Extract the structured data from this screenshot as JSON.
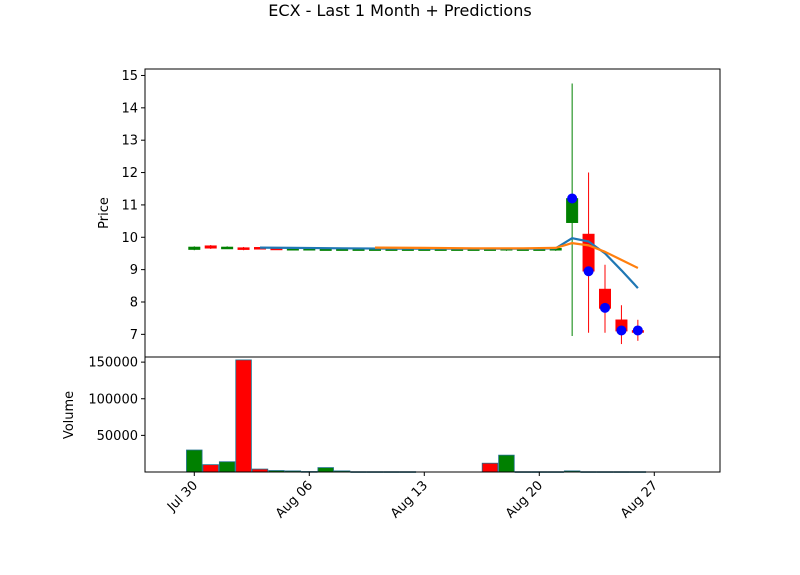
{
  "chart_data": {
    "type": "candlestick",
    "title": "ECX - Last 1 Month + Predictions",
    "price_panel": {
      "ylabel": "Price",
      "ylim": [
        6.3,
        15.2
      ],
      "yticks": [
        7,
        8,
        9,
        10,
        11,
        12,
        13,
        14,
        15
      ],
      "grid": false
    },
    "volume_panel": {
      "ylabel": "Volume",
      "ylim": [
        0,
        157000
      ],
      "yticks": [
        50000,
        100000,
        150000
      ],
      "yticklabels": [
        "50000",
        "100000",
        "150000"
      ],
      "grid": false
    },
    "x_axis": {
      "xlim": [
        "2025-07-27",
        "2025-08-31"
      ],
      "ticks": [
        "2025-07-30",
        "2025-08-06",
        "2025-08-13",
        "2025-08-20",
        "2025-08-27"
      ],
      "ticklabels": [
        "Jul 30",
        "Aug 06",
        "Aug 13",
        "Aug 20",
        "Aug 27"
      ]
    },
    "colors": {
      "up": "#008000",
      "down": "#ff0000",
      "ma_short": "#1f77b4",
      "ma_long": "#ff7f0e",
      "prediction": "#0000ff"
    },
    "candles": [
      {
        "date": "2025-07-30",
        "open": 9.62,
        "high": 9.72,
        "low": 9.6,
        "close": 9.7
      },
      {
        "date": "2025-07-31",
        "open": 9.74,
        "high": 9.76,
        "low": 9.64,
        "close": 9.66
      },
      {
        "date": "2025-08-01",
        "open": 9.68,
        "high": 9.72,
        "low": 9.66,
        "close": 9.7
      },
      {
        "date": "2025-08-02",
        "open": 9.68,
        "high": 9.7,
        "low": 9.6,
        "close": 9.66
      },
      {
        "date": "2025-08-03",
        "open": 9.69,
        "high": 9.7,
        "low": 9.64,
        "close": 9.65
      },
      {
        "date": "2025-08-04",
        "open": 9.67,
        "high": 9.7,
        "low": 9.63,
        "close": 9.65
      },
      {
        "date": "2025-08-05",
        "open": 9.64,
        "high": 9.68,
        "low": 9.6,
        "close": 9.66
      },
      {
        "date": "2025-08-06",
        "open": 9.64,
        "high": 9.68,
        "low": 9.6,
        "close": 9.66
      },
      {
        "date": "2025-08-07",
        "open": 9.64,
        "high": 9.68,
        "low": 9.6,
        "close": 9.65
      },
      {
        "date": "2025-08-08",
        "open": 9.64,
        "high": 9.67,
        "low": 9.6,
        "close": 9.65
      },
      {
        "date": "2025-08-09",
        "open": 9.64,
        "high": 9.67,
        "low": 9.6,
        "close": 9.65
      },
      {
        "date": "2025-08-10",
        "open": 9.64,
        "high": 9.67,
        "low": 9.6,
        "close": 9.65
      },
      {
        "date": "2025-08-11",
        "open": 9.64,
        "high": 9.67,
        "low": 9.6,
        "close": 9.65
      },
      {
        "date": "2025-08-12",
        "open": 9.64,
        "high": 9.67,
        "low": 9.6,
        "close": 9.65
      },
      {
        "date": "2025-08-13",
        "open": 9.64,
        "high": 9.67,
        "low": 9.6,
        "close": 9.65
      },
      {
        "date": "2025-08-14",
        "open": 9.64,
        "high": 9.67,
        "low": 9.6,
        "close": 9.65
      },
      {
        "date": "2025-08-15",
        "open": 9.64,
        "high": 9.67,
        "low": 9.6,
        "close": 9.65
      },
      {
        "date": "2025-08-16",
        "open": 9.64,
        "high": 9.67,
        "low": 9.6,
        "close": 9.65
      },
      {
        "date": "2025-08-17",
        "open": 9.64,
        "high": 9.67,
        "low": 9.6,
        "close": 9.65
      },
      {
        "date": "2025-08-18",
        "open": 9.62,
        "high": 9.67,
        "low": 9.58,
        "close": 9.66
      },
      {
        "date": "2025-08-19",
        "open": 9.64,
        "high": 9.67,
        "low": 9.6,
        "close": 9.65
      },
      {
        "date": "2025-08-20",
        "open": 9.64,
        "high": 9.67,
        "low": 9.6,
        "close": 9.65
      },
      {
        "date": "2025-08-21",
        "open": 9.6,
        "high": 9.68,
        "low": 9.58,
        "close": 9.66
      },
      {
        "date": "2025-08-22",
        "open": 10.45,
        "high": 14.75,
        "low": 6.95,
        "close": 11.2
      },
      {
        "date": "2025-08-23",
        "open": 10.1,
        "high": 12.0,
        "low": 7.05,
        "close": 8.95
      },
      {
        "date": "2025-08-24",
        "open": 8.4,
        "high": 9.15,
        "low": 7.05,
        "close": 7.8
      },
      {
        "date": "2025-08-25",
        "open": 7.45,
        "high": 7.9,
        "low": 6.7,
        "close": 7.1
      },
      {
        "date": "2025-08-26",
        "open": 7.12,
        "high": 7.45,
        "low": 6.8,
        "close": 7.1
      }
    ],
    "volume": [
      {
        "date": "2025-07-30",
        "value": 30000,
        "direction": "up"
      },
      {
        "date": "2025-07-31",
        "value": 10000,
        "direction": "down"
      },
      {
        "date": "2025-08-01",
        "value": 14000,
        "direction": "up"
      },
      {
        "date": "2025-08-02",
        "value": 153000,
        "direction": "down"
      },
      {
        "date": "2025-08-03",
        "value": 4000,
        "direction": "down"
      },
      {
        "date": "2025-08-04",
        "value": 2000,
        "direction": "up"
      },
      {
        "date": "2025-08-05",
        "value": 1500,
        "direction": "up"
      },
      {
        "date": "2025-08-06",
        "value": 700,
        "direction": "up"
      },
      {
        "date": "2025-08-07",
        "value": 6000,
        "direction": "up"
      },
      {
        "date": "2025-08-08",
        "value": 1500,
        "direction": "up"
      },
      {
        "date": "2025-08-09",
        "value": 500,
        "direction": "up"
      },
      {
        "date": "2025-08-10",
        "value": 500,
        "direction": "up"
      },
      {
        "date": "2025-08-11",
        "value": 500,
        "direction": "up"
      },
      {
        "date": "2025-08-12",
        "value": 500,
        "direction": "up"
      },
      {
        "date": "2025-08-17",
        "value": 12000,
        "direction": "down"
      },
      {
        "date": "2025-08-18",
        "value": 23000,
        "direction": "up"
      },
      {
        "date": "2025-08-19",
        "value": 500,
        "direction": "up"
      },
      {
        "date": "2025-08-20",
        "value": 500,
        "direction": "up"
      },
      {
        "date": "2025-08-21",
        "value": 500,
        "direction": "up"
      },
      {
        "date": "2025-08-22",
        "value": 1500,
        "direction": "up"
      },
      {
        "date": "2025-08-23",
        "value": 500,
        "direction": "down"
      },
      {
        "date": "2025-08-24",
        "value": 500,
        "direction": "down"
      },
      {
        "date": "2025-08-25",
        "value": 500,
        "direction": "down"
      },
      {
        "date": "2025-08-26",
        "value": 500,
        "direction": "down"
      }
    ],
    "series": [
      {
        "kind": "line",
        "color": "#1f77b4",
        "x": [
          "2025-08-03",
          "2025-08-05",
          "2025-08-08",
          "2025-08-11",
          "2025-08-14",
          "2025-08-17",
          "2025-08-20",
          "2025-08-21",
          "2025-08-22",
          "2025-08-23",
          "2025-08-24",
          "2025-08-25",
          "2025-08-26"
        ],
        "y": [
          9.68,
          9.67,
          9.66,
          9.65,
          9.65,
          9.65,
          9.65,
          9.66,
          9.97,
          9.87,
          9.5,
          8.98,
          8.43
        ]
      },
      {
        "kind": "line",
        "color": "#ff7f0e",
        "x": [
          "2025-08-10",
          "2025-08-13",
          "2025-08-16",
          "2025-08-19",
          "2025-08-21",
          "2025-08-22",
          "2025-08-23",
          "2025-08-24",
          "2025-08-25",
          "2025-08-26"
        ],
        "y": [
          9.68,
          9.67,
          9.66,
          9.66,
          9.67,
          9.82,
          9.75,
          9.55,
          9.3,
          9.05
        ]
      },
      {
        "kind": "scatter",
        "color": "#0000ff",
        "x": [
          "2025-08-22",
          "2025-08-23",
          "2025-08-24",
          "2025-08-25",
          "2025-08-26"
        ],
        "y": [
          11.2,
          8.95,
          7.82,
          7.12,
          7.12
        ]
      }
    ]
  }
}
